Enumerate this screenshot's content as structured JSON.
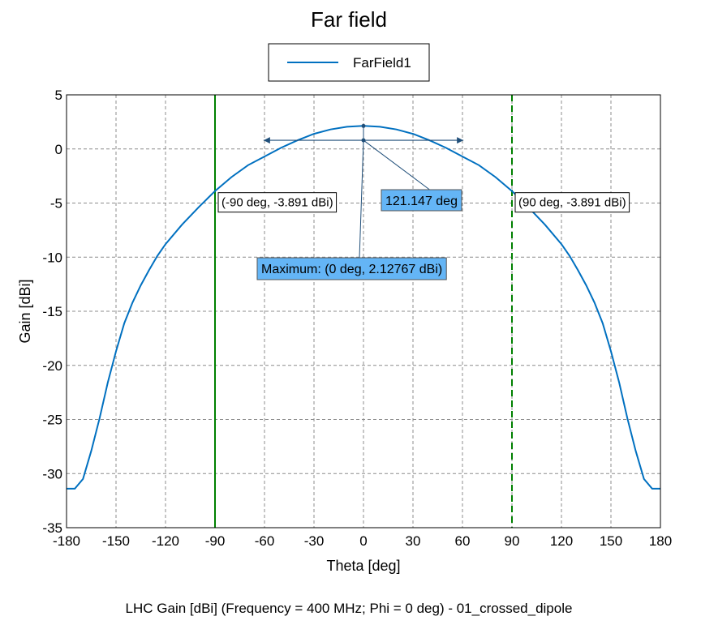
{
  "chart_data": {
    "type": "line",
    "title": "Far field",
    "xlabel": "Theta [deg]",
    "ylabel": "Gain [dBi]",
    "footer": "LHC Gain [dBi] (Frequency = 400 MHz; Phi = 0 deg) - 01_crossed_dipole",
    "xlim": [
      -180,
      180
    ],
    "ylim": [
      -35,
      5
    ],
    "xticks": [
      -180,
      -150,
      -120,
      -90,
      -60,
      -30,
      0,
      30,
      60,
      90,
      120,
      150,
      180
    ],
    "yticks": [
      5,
      0,
      -5,
      -10,
      -15,
      -20,
      -25,
      -30,
      -35
    ],
    "xtick_labels": [
      "-180",
      "-150",
      "-120",
      "-90",
      "-60",
      "-30",
      "0",
      "30",
      "60",
      "90",
      "120",
      "150",
      "180"
    ],
    "ytick_labels": [
      "5",
      "0",
      "-5",
      "-10",
      "-15",
      "-20",
      "-25",
      "-30",
      "-35"
    ],
    "grid": true,
    "legend": {
      "position": "top-center",
      "entries": [
        "FarField1"
      ]
    },
    "series": [
      {
        "name": "FarField1",
        "color": "#0070c0",
        "x": [
          -180,
          -175,
          -170,
          -165,
          -160,
          -155,
          -150,
          -145,
          -140,
          -135,
          -130,
          -125,
          -120,
          -110,
          -100,
          -90,
          -80,
          -70,
          -60,
          -50,
          -40,
          -30,
          -20,
          -10,
          0,
          10,
          20,
          30,
          40,
          50,
          60,
          70,
          80,
          90,
          100,
          110,
          120,
          125,
          130,
          135,
          140,
          145,
          150,
          155,
          160,
          165,
          170,
          175,
          180
        ],
        "values": [
          -31.4,
          -31.4,
          -30.5,
          -27.9,
          -24.9,
          -21.6,
          -18.7,
          -16.1,
          -14.2,
          -12.6,
          -11.2,
          -9.9,
          -8.8,
          -7.0,
          -5.4,
          -3.891,
          -2.6,
          -1.5,
          -0.7,
          0.1,
          0.8,
          1.4,
          1.8,
          2.05,
          2.12767,
          2.05,
          1.8,
          1.4,
          0.8,
          0.1,
          -0.7,
          -1.5,
          -2.6,
          -3.891,
          -5.4,
          -7.0,
          -8.8,
          -9.9,
          -11.2,
          -12.6,
          -14.2,
          -16.1,
          -18.7,
          -21.6,
          -24.9,
          -27.9,
          -30.5,
          -31.4,
          -31.4
        ]
      }
    ],
    "markers": [
      {
        "x": -90,
        "color": "#008000",
        "style": "solid",
        "label": "(-90 deg, -3.891 dBi)",
        "y": -3.891
      },
      {
        "x": 90,
        "color": "#008000",
        "style": "dashed",
        "label": "(90 deg, -3.891 dBi)",
        "y": -3.891
      }
    ],
    "beamwidth": {
      "x_from": -60.57,
      "x_to": 60.57,
      "y": 0.8,
      "label": "121.147 deg"
    },
    "maximum": {
      "x": 0,
      "y": 2.12767,
      "label": "Maximum: (0 deg, 2.12767 dBi)"
    },
    "annotation_color": "#64b5f6"
  }
}
